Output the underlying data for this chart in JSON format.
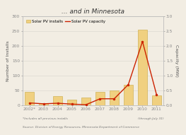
{
  "title": "... and in Minnesota",
  "years": [
    "2002*",
    "2003",
    "2004",
    "2005",
    "2006",
    "2007",
    "2008",
    "2009",
    "2010",
    "2011"
  ],
  "installs": [
    45,
    8,
    30,
    18,
    25,
    45,
    50,
    70,
    255,
    33
  ],
  "capacity": [
    0.08,
    0.05,
    0.07,
    0.04,
    0.02,
    0.22,
    0.22,
    0.7,
    2.15,
    0.35
  ],
  "bar_color": "#f0d080",
  "bar_edge_color": "#c8a840",
  "line_color": "#cc2200",
  "ylabel_left": "Number of Installs",
  "ylabel_right": "Capacity (MW)",
  "ylim_left": [
    0,
    300
  ],
  "ylim_right": [
    0,
    3.0
  ],
  "yticks_left": [
    0,
    50,
    100,
    150,
    200,
    250,
    300
  ],
  "yticks_right": [
    0,
    0.5,
    1.0,
    1.5,
    2.0,
    2.5,
    3.0
  ],
  "footnote1": "*Includes all previous installs",
  "footnote2": "Source: Division of Energy Resources, Minnesota Department of Commerce",
  "footnote_right": "(through July 31)",
  "bg_color": "#f2ede3",
  "title_fontsize": 6.5,
  "label_fontsize": 4.5,
  "tick_fontsize": 4.2,
  "footnote_fontsize": 3.2,
  "legend_fontsize": 4.0
}
